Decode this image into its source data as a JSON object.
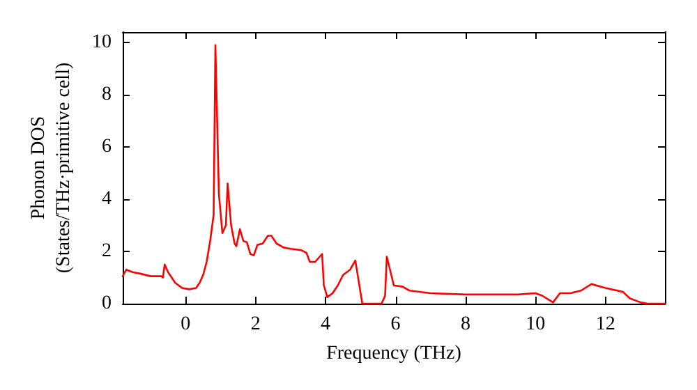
{
  "chart_data": {
    "type": "line",
    "xlabel": "Frequency (THz)",
    "ylabel": "Phonon DOS\n(States/THz·primitive cell)",
    "xlim": [
      -1.8,
      13.7
    ],
    "ylim": [
      0,
      10.4
    ],
    "xticks": [
      0,
      2,
      4,
      6,
      8,
      10,
      12
    ],
    "yticks": [
      0,
      2,
      4,
      6,
      8,
      10
    ],
    "grid": false,
    "marker": "none",
    "line_style": "solid",
    "x": [
      -1.8,
      -1.7,
      -1.5,
      -1.3,
      -1.0,
      -0.7,
      -0.65,
      -0.6,
      -0.5,
      -0.3,
      -0.1,
      0.1,
      0.3,
      0.4,
      0.5,
      0.6,
      0.7,
      0.8,
      0.85,
      0.95,
      1.05,
      1.15,
      1.2,
      1.3,
      1.4,
      1.45,
      1.55,
      1.65,
      1.75,
      1.85,
      1.95,
      2.05,
      2.2,
      2.35,
      2.45,
      2.6,
      2.8,
      3.0,
      3.3,
      3.45,
      3.55,
      3.7,
      3.9,
      3.95,
      4.05,
      4.2,
      4.35,
      4.5,
      4.7,
      4.85,
      5.05,
      5.6,
      5.7,
      5.75,
      5.95,
      6.2,
      6.4,
      7,
      8,
      9,
      9.5,
      10,
      10.2,
      10.5,
      10.7,
      11,
      11.3,
      11.6,
      12,
      12.5,
      12.7,
      13.0,
      13.2,
      13.7
    ],
    "series": [
      {
        "color": "#ff0000",
        "values": [
          1.05,
          1.3,
          1.2,
          1.15,
          1.05,
          1.05,
          1.0,
          1.5,
          1.2,
          0.8,
          0.6,
          0.55,
          0.6,
          0.8,
          1.1,
          1.6,
          2.4,
          3.4,
          9.9,
          4.2,
          2.7,
          3.0,
          4.6,
          3.0,
          2.3,
          2.2,
          2.85,
          2.4,
          2.35,
          1.9,
          1.85,
          2.25,
          2.3,
          2.6,
          2.6,
          2.3,
          2.15,
          2.1,
          2.05,
          1.95,
          1.6,
          1.6,
          1.9,
          0.7,
          0.25,
          0.4,
          0.7,
          1.1,
          1.3,
          1.65,
          0,
          0,
          0.3,
          1.8,
          0.7,
          0.65,
          0.5,
          0.4,
          0.35,
          0.35,
          0.35,
          0.4,
          0.3,
          0.05,
          0.4,
          0.4,
          0.5,
          0.75,
          0.6,
          0.45,
          0.2,
          0.05,
          0,
          0
        ]
      }
    ]
  }
}
